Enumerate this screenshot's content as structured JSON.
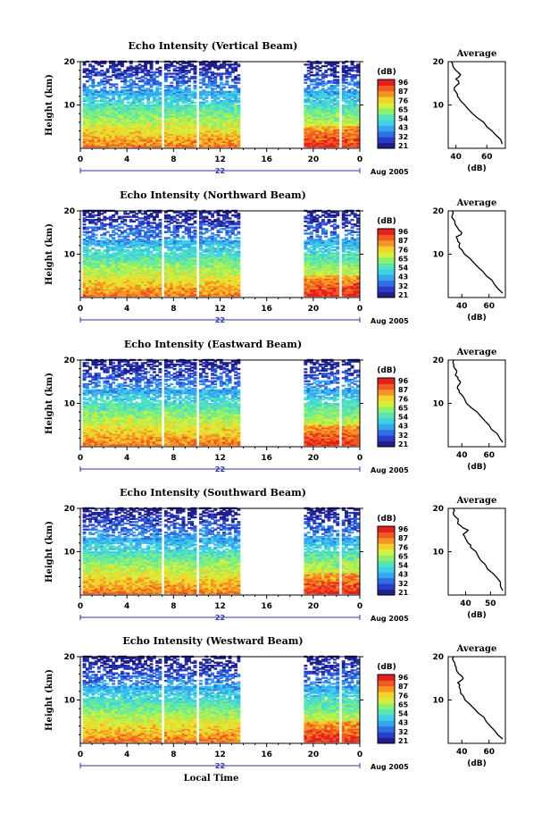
{
  "colors": {
    "colorbar": [
      "#1e1e8c",
      "#2a3cc8",
      "#2f6ee6",
      "#35a6f0",
      "#3fd0e6",
      "#56e6b4",
      "#8cf06e",
      "#d2f03c",
      "#f5d22a",
      "#f59624",
      "#f05a20",
      "#e61e1e"
    ],
    "axis": "#000000",
    "timeline": "#3333aa"
  },
  "shared": {
    "x_ticks": [
      "0",
      "4",
      "8",
      "12",
      "16",
      "20",
      "0"
    ],
    "day_label": "22",
    "date_label": "Aug 2005",
    "x_axis_label": "Local Time",
    "y_axis_label": "Height (km)",
    "y_ticks": [
      "10",
      "20"
    ],
    "colorbar_title": "(dB)",
    "colorbar_ticks": [
      "96",
      "87",
      "76",
      "65",
      "54",
      "43",
      "32",
      "21"
    ],
    "average_title": "Average",
    "average_xlabel": "(dB)"
  },
  "chart_data": [
    {
      "type": "heatmap",
      "title": "Echo Intensity (Vertical Beam)",
      "xlabel": "",
      "ylabel": "Height (km)",
      "xlim": [
        0,
        24
      ],
      "ylim": [
        0,
        20
      ],
      "data_gaps_hours": [
        [
          6.8,
          7.2
        ],
        [
          9.8,
          10.2
        ],
        [
          13.5,
          19.2
        ],
        [
          22.0,
          22.3
        ]
      ],
      "profile": {
        "title": "Average",
        "xlabel": "(dB)",
        "xticks": [
          "40",
          "60"
        ],
        "xlim": [
          35,
          72
        ],
        "height": [
          1,
          3,
          5,
          7,
          9,
          11,
          12,
          13,
          14,
          15,
          16,
          17,
          18,
          19,
          20
        ],
        "value": [
          70,
          66,
          60,
          54,
          48,
          43,
          41,
          40,
          39,
          42,
          40,
          43,
          40,
          38,
          37
        ]
      }
    },
    {
      "type": "heatmap",
      "title": "Echo Intensity (Northward Beam)",
      "xlabel": "",
      "ylabel": "Height (km)",
      "xlim": [
        0,
        24
      ],
      "ylim": [
        0,
        20
      ],
      "data_gaps_hours": [
        [
          6.8,
          7.2
        ],
        [
          9.8,
          10.2
        ],
        [
          13.5,
          19.2
        ],
        [
          22.0,
          22.3
        ]
      ],
      "profile": {
        "title": "Average",
        "xlabel": "(dB)",
        "xticks": [
          "40",
          "60"
        ],
        "xlim": [
          30,
          72
        ],
        "height": [
          1,
          3,
          5,
          7,
          9,
          11,
          12,
          13,
          14,
          15,
          16,
          17,
          18,
          19,
          20
        ],
        "value": [
          70,
          64,
          58,
          52,
          46,
          40,
          38,
          37,
          36,
          40,
          37,
          35,
          34,
          33,
          33
        ]
      }
    },
    {
      "type": "heatmap",
      "title": "Echo Intensity (Eastward Beam)",
      "xlabel": "",
      "ylabel": "Height (km)",
      "xlim": [
        0,
        24
      ],
      "ylim": [
        0,
        20
      ],
      "data_gaps_hours": [
        [
          6.8,
          7.2
        ],
        [
          9.8,
          10.2
        ],
        [
          13.5,
          19.2
        ],
        [
          22.0,
          22.3
        ]
      ],
      "profile": {
        "title": "Average",
        "xlabel": "(dB)",
        "xticks": [
          "40",
          "60"
        ],
        "xlim": [
          30,
          72
        ],
        "height": [
          1,
          3,
          5,
          7,
          9,
          11,
          12,
          13,
          14,
          15,
          16,
          17,
          18,
          19,
          20
        ],
        "value": [
          70,
          66,
          60,
          54,
          47,
          42,
          40,
          38,
          37,
          39,
          37,
          36,
          35,
          34,
          34
        ]
      }
    },
    {
      "type": "heatmap",
      "title": "Echo Intensity (Southward Beam)",
      "xlabel": "",
      "ylabel": "Height (km)",
      "xlim": [
        0,
        24
      ],
      "ylim": [
        0,
        20
      ],
      "data_gaps_hours": [
        [
          6.8,
          7.2
        ],
        [
          9.8,
          10.2
        ],
        [
          13.5,
          19.2
        ],
        [
          22.0,
          22.3
        ]
      ],
      "profile": {
        "title": "Average",
        "xlabel": "(dB)",
        "xticks": [
          "40",
          "50"
        ],
        "xlim": [
          33,
          56
        ],
        "height": [
          1,
          3,
          5,
          7,
          9,
          11,
          12,
          13,
          14,
          15,
          16,
          17,
          18,
          19,
          20
        ],
        "value": [
          55,
          54,
          51,
          48,
          45,
          42,
          41,
          40,
          39,
          41,
          38,
          37,
          36,
          35,
          35
        ]
      }
    },
    {
      "type": "heatmap",
      "title": "Echo Intensity (Westward Beam)",
      "xlabel": "Local Time",
      "ylabel": "Height (km)",
      "xlim": [
        0,
        24
      ],
      "ylim": [
        0,
        20
      ],
      "data_gaps_hours": [
        [
          6.8,
          7.2
        ],
        [
          9.8,
          10.2
        ],
        [
          13.5,
          19.2
        ],
        [
          22.0,
          22.3
        ]
      ],
      "profile": {
        "title": "Average",
        "xlabel": "(dB)",
        "xticks": [
          "40",
          "60"
        ],
        "xlim": [
          30,
          72
        ],
        "height": [
          1,
          3,
          5,
          7,
          9,
          11,
          12,
          13,
          14,
          15,
          16,
          17,
          18,
          19,
          20
        ],
        "value": [
          70,
          64,
          58,
          52,
          46,
          41,
          39,
          38,
          37,
          41,
          38,
          36,
          35,
          34,
          34
        ]
      }
    }
  ]
}
